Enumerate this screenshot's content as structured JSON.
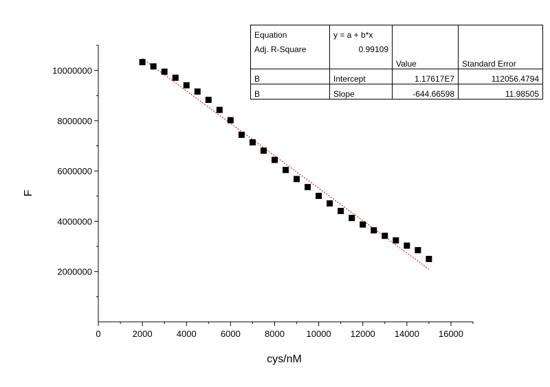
{
  "chart_data": {
    "type": "scatter",
    "title": "",
    "xlabel": "cys/nM",
    "ylabel": "F",
    "xlim": [
      0,
      17000
    ],
    "ylim": [
      0,
      11000000
    ],
    "xticks": [
      0,
      2000,
      4000,
      6000,
      8000,
      10000,
      12000,
      14000,
      16000
    ],
    "yticks": [
      2000000,
      4000000,
      6000000,
      8000000,
      10000000
    ],
    "xtick_labels": [
      "0",
      "2000",
      "4000",
      "6000",
      "8000",
      "10000",
      "12000",
      "14000",
      "16000"
    ],
    "ytick_labels": [
      "2000000",
      "4000000",
      "6000000",
      "8000000",
      "10000000"
    ],
    "grid": false,
    "series": [
      {
        "marker": "square",
        "color": "#000000",
        "x": [
          2000,
          2500,
          3000,
          3500,
          4000,
          4500,
          5000,
          5500,
          6000,
          6500,
          7000,
          7500,
          8000,
          8500,
          9000,
          9500,
          10000,
          10500,
          11000,
          11500,
          12000,
          12500,
          13000,
          13500,
          14000,
          14500,
          15000
        ],
        "y": [
          10330000,
          10160000,
          9950000,
          9710000,
          9410000,
          9160000,
          8830000,
          8430000,
          8020000,
          7440000,
          7140000,
          6810000,
          6440000,
          6040000,
          5680000,
          5360000,
          5010000,
          4710000,
          4410000,
          4130000,
          3870000,
          3640000,
          3420000,
          3240000,
          3030000,
          2850000,
          2500000
        ]
      }
    ],
    "fit_line": {
      "color": "#cc0000",
      "style": "dotted",
      "x_range": [
        2000,
        15000
      ],
      "intercept": 11761700,
      "slope": -644.66598
    },
    "fit_table": {
      "rows": [
        [
          "Equation",
          "y = a + b*x",
          "",
          ""
        ],
        [
          "Adj. R-Square",
          "0.99109",
          "",
          ""
        ],
        [
          "",
          "",
          "Value",
          "Standard Error"
        ],
        [
          "B",
          "Intercept",
          "1.17617E7",
          "112056.4794"
        ],
        [
          "B",
          "Slope",
          "-644.66598",
          "11.98505"
        ]
      ]
    }
  }
}
